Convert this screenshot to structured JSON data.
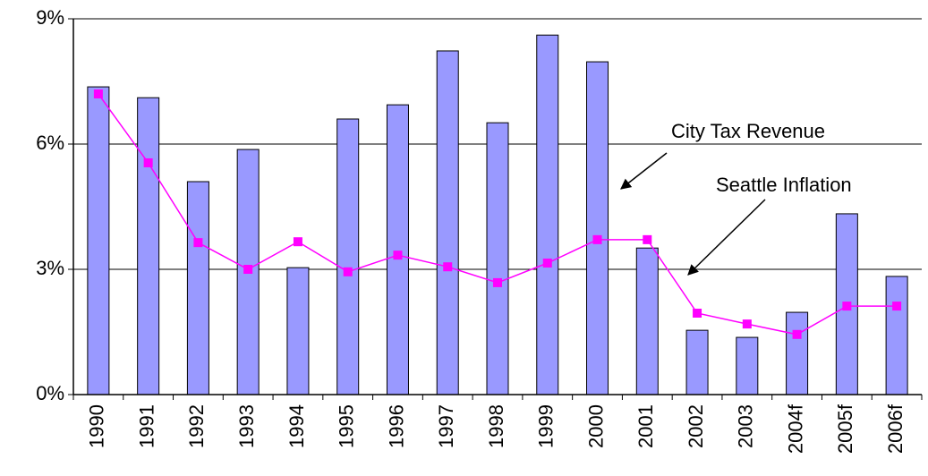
{
  "chart_data": {
    "type": "bar_line",
    "categories": [
      "1990",
      "1991",
      "1992",
      "1993",
      "1994",
      "1995",
      "1996",
      "1997",
      "1998",
      "1999",
      "2000",
      "2001",
      "2002",
      "2003",
      "2004f",
      "2005f",
      "2006f"
    ],
    "series": [
      {
        "name": "City Tax Revenue",
        "color": "#9999ff",
        "type": "bar",
        "values": [
          7.37,
          7.11,
          5.1,
          5.87,
          3.04,
          6.6,
          6.94,
          8.23,
          6.51,
          8.61,
          7.97,
          3.51,
          1.54,
          1.37,
          1.97,
          4.33,
          2.83
        ]
      },
      {
        "name": "Seattle Inflation",
        "color": "#ff00ff",
        "type": "line",
        "values": [
          7.2,
          5.55,
          3.64,
          3.0,
          3.66,
          2.94,
          3.34,
          3.06,
          2.68,
          3.15,
          3.71,
          3.71,
          1.95,
          1.69,
          1.44,
          2.12,
          2.12
        ]
      }
    ],
    "ylim": [
      0,
      9
    ],
    "yticks": [
      {
        "value": 0,
        "label": "0%"
      },
      {
        "value": 3,
        "label": "3%"
      },
      {
        "value": 6,
        "label": "6%"
      },
      {
        "value": 9,
        "label": "9%"
      }
    ],
    "grid": true
  }
}
